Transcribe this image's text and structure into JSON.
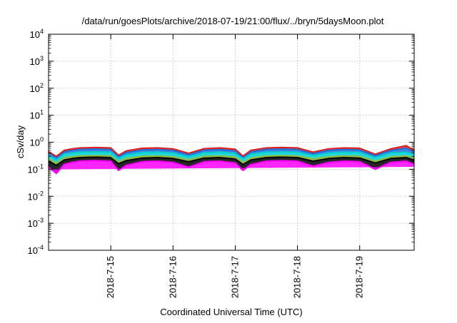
{
  "chart_data": {
    "type": "area",
    "title": "/data/run/goesPlots/archive/2018-07-19/21:00/flux/../bryn/5daysMoon.plot",
    "xlabel": "Coordinated Universal Time (UTC)",
    "ylabel": "cSv/day",
    "y_scale": "log",
    "ylim": [
      0.0001,
      10000
    ],
    "y_ticks": [
      {
        "base": "10",
        "exp": "-4",
        "value": 0.0001
      },
      {
        "base": "10",
        "exp": "-3",
        "value": 0.001
      },
      {
        "base": "10",
        "exp": "-2",
        "value": 0.01
      },
      {
        "base": "10",
        "exp": "-1",
        "value": 0.1
      },
      {
        "base": "10",
        "exp": "0",
        "value": 1
      },
      {
        "base": "10",
        "exp": "1",
        "value": 10
      },
      {
        "base": "10",
        "exp": "2",
        "value": 100
      },
      {
        "base": "10",
        "exp": "3",
        "value": 1000
      },
      {
        "base": "10",
        "exp": "4",
        "value": 10000
      }
    ],
    "xlim": [
      "2018-07-14 00:00",
      "2018-07-19 21:00"
    ],
    "x_ticks": [
      "2018-7-15",
      "2018-7-16",
      "2018-7-17",
      "2018-7-18",
      "2018-7-19"
    ],
    "grid": true,
    "legend": "none",
    "series": [
      {
        "color": "#ff00ff",
        "x": [
          "2018-07-14 00:00",
          "2018-07-14 03:00",
          "2018-07-14 06:00",
          "2018-07-14 09:00",
          "2018-07-14 12:00",
          "2018-07-14 18:00",
          "2018-07-15 00:00",
          "2018-07-15 03:00",
          "2018-07-15 06:00",
          "2018-07-15 12:00",
          "2018-07-15 18:00",
          "2018-07-16 00:00",
          "2018-07-16 06:00",
          "2018-07-16 12:00",
          "2018-07-16 18:00",
          "2018-07-17 00:00",
          "2018-07-17 03:00",
          "2018-07-17 06:00",
          "2018-07-17 12:00",
          "2018-07-17 18:00",
          "2018-07-18 00:00",
          "2018-07-18 06:00",
          "2018-07-18 12:00",
          "2018-07-18 18:00",
          "2018-07-19 00:00",
          "2018-07-19 06:00",
          "2018-07-19 12:00",
          "2018-07-19 18:00",
          "2018-07-19 21:00"
        ],
        "y": [
          0.12,
          0.07,
          0.15,
          0.18,
          0.2,
          0.21,
          0.2,
          0.09,
          0.14,
          0.19,
          0.2,
          0.18,
          0.12,
          0.19,
          0.2,
          0.17,
          0.09,
          0.15,
          0.2,
          0.21,
          0.2,
          0.13,
          0.18,
          0.2,
          0.19,
          0.1,
          0.18,
          0.2,
          0.15
        ]
      },
      {
        "color": "#000000",
        "x": [
          "2018-07-14 00:00",
          "2018-07-14 03:00",
          "2018-07-14 06:00",
          "2018-07-14 09:00",
          "2018-07-14 12:00",
          "2018-07-14 18:00",
          "2018-07-15 00:00",
          "2018-07-15 03:00",
          "2018-07-15 06:00",
          "2018-07-15 12:00",
          "2018-07-15 18:00",
          "2018-07-16 00:00",
          "2018-07-16 06:00",
          "2018-07-16 12:00",
          "2018-07-16 18:00",
          "2018-07-17 00:00",
          "2018-07-17 03:00",
          "2018-07-17 06:00",
          "2018-07-17 12:00",
          "2018-07-17 18:00",
          "2018-07-18 00:00",
          "2018-07-18 06:00",
          "2018-07-18 12:00",
          "2018-07-18 18:00",
          "2018-07-19 00:00",
          "2018-07-19 06:00",
          "2018-07-19 12:00",
          "2018-07-19 18:00",
          "2018-07-19 21:00"
        ],
        "y": [
          0.2,
          0.14,
          0.22,
          0.25,
          0.27,
          0.28,
          0.27,
          0.16,
          0.21,
          0.26,
          0.27,
          0.25,
          0.19,
          0.26,
          0.27,
          0.24,
          0.15,
          0.22,
          0.27,
          0.28,
          0.27,
          0.2,
          0.25,
          0.27,
          0.26,
          0.17,
          0.25,
          0.27,
          0.22
        ]
      },
      {
        "color": "#8fbc3f",
        "x": [
          "2018-07-14 00:00",
          "2018-07-14 03:00",
          "2018-07-14 06:00",
          "2018-07-14 09:00",
          "2018-07-14 12:00",
          "2018-07-14 18:00",
          "2018-07-15 00:00",
          "2018-07-15 03:00",
          "2018-07-15 06:00",
          "2018-07-15 12:00",
          "2018-07-15 18:00",
          "2018-07-16 00:00",
          "2018-07-16 06:00",
          "2018-07-16 12:00",
          "2018-07-16 18:00",
          "2018-07-17 00:00",
          "2018-07-17 03:00",
          "2018-07-17 06:00",
          "2018-07-17 12:00",
          "2018-07-17 18:00",
          "2018-07-18 00:00",
          "2018-07-18 06:00",
          "2018-07-18 12:00",
          "2018-07-18 18:00",
          "2018-07-19 00:00",
          "2018-07-19 06:00",
          "2018-07-19 12:00",
          "2018-07-19 18:00",
          "2018-07-19 21:00"
        ],
        "y": [
          0.24,
          0.17,
          0.26,
          0.29,
          0.31,
          0.32,
          0.31,
          0.19,
          0.25,
          0.3,
          0.31,
          0.29,
          0.22,
          0.3,
          0.31,
          0.28,
          0.18,
          0.26,
          0.31,
          0.32,
          0.31,
          0.24,
          0.29,
          0.31,
          0.3,
          0.2,
          0.29,
          0.31,
          0.26
        ]
      },
      {
        "color": "#00d0d0",
        "x": [
          "2018-07-14 00:00",
          "2018-07-14 03:00",
          "2018-07-14 06:00",
          "2018-07-14 09:00",
          "2018-07-14 12:00",
          "2018-07-14 18:00",
          "2018-07-15 00:00",
          "2018-07-15 03:00",
          "2018-07-15 06:00",
          "2018-07-15 12:00",
          "2018-07-15 18:00",
          "2018-07-16 00:00",
          "2018-07-16 06:00",
          "2018-07-16 12:00",
          "2018-07-16 18:00",
          "2018-07-17 00:00",
          "2018-07-17 03:00",
          "2018-07-17 06:00",
          "2018-07-17 12:00",
          "2018-07-17 18:00",
          "2018-07-18 00:00",
          "2018-07-18 06:00",
          "2018-07-18 12:00",
          "2018-07-18 18:00",
          "2018-07-19 00:00",
          "2018-07-19 06:00",
          "2018-07-19 12:00",
          "2018-07-19 18:00",
          "2018-07-19 21:00"
        ],
        "y": [
          0.33,
          0.22,
          0.36,
          0.4,
          0.43,
          0.44,
          0.43,
          0.25,
          0.34,
          0.42,
          0.43,
          0.4,
          0.29,
          0.41,
          0.43,
          0.39,
          0.24,
          0.36,
          0.43,
          0.44,
          0.43,
          0.32,
          0.4,
          0.43,
          0.42,
          0.27,
          0.4,
          0.43,
          0.36
        ]
      },
      {
        "color": "#1f6fd8",
        "x": [
          "2018-07-14 00:00",
          "2018-07-14 03:00",
          "2018-07-14 06:00",
          "2018-07-14 09:00",
          "2018-07-14 12:00",
          "2018-07-14 18:00",
          "2018-07-15 00:00",
          "2018-07-15 03:00",
          "2018-07-15 06:00",
          "2018-07-15 12:00",
          "2018-07-15 18:00",
          "2018-07-16 00:00",
          "2018-07-16 06:00",
          "2018-07-16 12:00",
          "2018-07-16 18:00",
          "2018-07-17 00:00",
          "2018-07-17 03:00",
          "2018-07-17 06:00",
          "2018-07-17 12:00",
          "2018-07-17 18:00",
          "2018-07-18 00:00",
          "2018-07-18 06:00",
          "2018-07-18 12:00",
          "2018-07-18 18:00",
          "2018-07-19 00:00",
          "2018-07-19 06:00",
          "2018-07-19 12:00",
          "2018-07-19 18:00",
          "2018-07-19 21:00"
        ],
        "y": [
          0.4,
          0.27,
          0.44,
          0.5,
          0.54,
          0.56,
          0.54,
          0.3,
          0.42,
          0.52,
          0.54,
          0.5,
          0.35,
          0.51,
          0.54,
          0.48,
          0.28,
          0.44,
          0.54,
          0.56,
          0.54,
          0.38,
          0.5,
          0.54,
          0.52,
          0.32,
          0.5,
          0.6,
          0.44
        ]
      },
      {
        "color": "#e0201e",
        "x": [
          "2018-07-14 00:00",
          "2018-07-14 03:00",
          "2018-07-14 06:00",
          "2018-07-14 09:00",
          "2018-07-14 12:00",
          "2018-07-14 18:00",
          "2018-07-15 00:00",
          "2018-07-15 03:00",
          "2018-07-15 06:00",
          "2018-07-15 12:00",
          "2018-07-15 18:00",
          "2018-07-16 00:00",
          "2018-07-16 06:00",
          "2018-07-16 12:00",
          "2018-07-16 18:00",
          "2018-07-17 00:00",
          "2018-07-17 03:00",
          "2018-07-17 06:00",
          "2018-07-17 12:00",
          "2018-07-17 18:00",
          "2018-07-18 00:00",
          "2018-07-18 06:00",
          "2018-07-18 12:00",
          "2018-07-18 18:00",
          "2018-07-19 00:00",
          "2018-07-19 06:00",
          "2018-07-19 12:00",
          "2018-07-19 18:00",
          "2018-07-19 21:00"
        ],
        "y": [
          0.45,
          0.3,
          0.5,
          0.57,
          0.62,
          0.64,
          0.62,
          0.33,
          0.48,
          0.6,
          0.62,
          0.57,
          0.39,
          0.58,
          0.62,
          0.55,
          0.31,
          0.5,
          0.62,
          0.64,
          0.62,
          0.43,
          0.57,
          0.62,
          0.6,
          0.36,
          0.57,
          0.75,
          0.5
        ]
      }
    ]
  }
}
